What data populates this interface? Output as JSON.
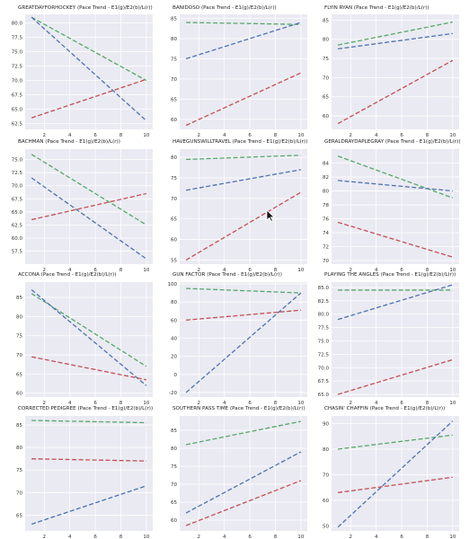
{
  "colors": {
    "background": "#eaeaf2",
    "grid": "#ffffff",
    "axis_text": "#333333",
    "title_text": "#222222",
    "series_a": "#55a868",
    "series_b": "#4c72b0",
    "series_c": "#c44e52"
  },
  "cursor_icon": "arrow-cursor-icon",
  "chart_data": [
    {
      "type": "line",
      "title": "GREATDAYFORHOCKEY (Pace Trend - E1(g)/E2(b)/L(r))",
      "x": [
        1,
        10
      ],
      "xticks": [
        2,
        4,
        6,
        8,
        10
      ],
      "xlim": [
        0.5,
        10.5
      ],
      "ylim": [
        61.5,
        81.5
      ],
      "yticks": [
        62.5,
        65.0,
        67.5,
        70.0,
        72.5,
        75.0,
        77.5,
        80.0
      ],
      "ytick_labels": [
        "62.5",
        "65.0",
        "67.5",
        "70.0",
        "72.5",
        "75.0",
        "77.5",
        "80.0"
      ],
      "series": [
        {
          "color": "series_a",
          "values": [
            81.0,
            70.0
          ]
        },
        {
          "color": "series_b",
          "values": [
            81.0,
            63.0
          ]
        },
        {
          "color": "series_c",
          "values": [
            63.5,
            70.2
          ]
        }
      ]
    },
    {
      "type": "line",
      "title": "BANIDOSO (Pace Trend - E1(g)/E2(b)/L(r))",
      "x": [
        1,
        10
      ],
      "xticks": [
        2,
        4,
        6,
        8,
        10
      ],
      "xlim": [
        0.5,
        10.5
      ],
      "ylim": [
        57.5,
        86
      ],
      "yticks": [
        60,
        65,
        70,
        75,
        80,
        85
      ],
      "ytick_labels": [
        "60",
        "65",
        "70",
        "75",
        "80",
        "85"
      ],
      "series": [
        {
          "color": "series_a",
          "values": [
            84.0,
            83.5
          ]
        },
        {
          "color": "series_b",
          "values": [
            75.0,
            84.0
          ]
        },
        {
          "color": "series_c",
          "values": [
            58.5,
            71.5
          ]
        }
      ]
    },
    {
      "type": "line",
      "title": "FLYIN RYAN (Pace Trend - E1(g)/E2(b)/L(r))",
      "x": [
        1,
        10
      ],
      "xticks": [
        2,
        4,
        6,
        8,
        10
      ],
      "xlim": [
        0.5,
        10.5
      ],
      "ylim": [
        56.5,
        86.5
      ],
      "yticks": [
        60,
        65,
        70,
        75,
        80,
        85
      ],
      "ytick_labels": [
        "60",
        "65",
        "70",
        "75",
        "80",
        "85"
      ],
      "series": [
        {
          "color": "series_a",
          "values": [
            78.5,
            84.5
          ]
        },
        {
          "color": "series_b",
          "values": [
            77.5,
            81.5
          ]
        },
        {
          "color": "series_c",
          "values": [
            58.0,
            74.5
          ]
        }
      ]
    },
    {
      "type": "line",
      "title": "BACHMAN (Pace Trend - E1(g)/E2(b)/L(r))",
      "x": [
        1,
        10
      ],
      "xticks": [
        2,
        4,
        6,
        8,
        10
      ],
      "xlim": [
        0.5,
        10.5
      ],
      "ylim": [
        55,
        77
      ],
      "yticks": [
        57.5,
        60.0,
        62.5,
        65.0,
        67.5,
        70.0,
        72.5,
        75.0
      ],
      "ytick_labels": [
        "57.5",
        "60.0",
        "62.5",
        "65.0",
        "67.5",
        "70.0",
        "72.5",
        "75.0"
      ],
      "series": [
        {
          "color": "series_a",
          "values": [
            76.0,
            62.5
          ]
        },
        {
          "color": "series_b",
          "values": [
            71.5,
            56.0
          ]
        },
        {
          "color": "series_c",
          "values": [
            63.5,
            68.5
          ]
        }
      ]
    },
    {
      "type": "line",
      "title": "HAVEGUNSWILLTRAVEL (Pace Trend - E1(g)/E2(b)/L(r))",
      "x": [
        1,
        10
      ],
      "xticks": [
        2,
        4,
        6,
        8,
        10
      ],
      "xlim": [
        0.5,
        10.5
      ],
      "ylim": [
        54,
        82
      ],
      "yticks": [
        55,
        60,
        65,
        70,
        75,
        80
      ],
      "ytick_labels": [
        "55",
        "60",
        "65",
        "70",
        "75",
        "80"
      ],
      "series": [
        {
          "color": "series_a",
          "values": [
            79.5,
            80.5
          ]
        },
        {
          "color": "series_b",
          "values": [
            72.0,
            77.0
          ]
        },
        {
          "color": "series_c",
          "values": [
            55.0,
            71.5
          ]
        }
      ]
    },
    {
      "type": "line",
      "title": "GERALDRAYDAPLEGRAY (Pace Trend - E1(g)/E2(b)/L(r))",
      "x": [
        1,
        10
      ],
      "xticks": [
        2,
        4,
        6,
        8,
        10
      ],
      "xlim": [
        0.5,
        10.5
      ],
      "ylim": [
        69.5,
        86
      ],
      "yticks": [
        70,
        72,
        74,
        76,
        78,
        80,
        82,
        84
      ],
      "ytick_labels": [
        "70",
        "72",
        "74",
        "76",
        "78",
        "80",
        "82",
        "84"
      ],
      "series": [
        {
          "color": "series_a",
          "values": [
            85.0,
            79.0
          ]
        },
        {
          "color": "series_b",
          "values": [
            81.5,
            80.0
          ]
        },
        {
          "color": "series_c",
          "values": [
            75.5,
            70.5
          ]
        }
      ]
    },
    {
      "type": "line",
      "title": "ACCONA (Pace Trend - E1(g)/E2(b)/L(r))",
      "x": [
        1,
        10
      ],
      "xticks": [
        2,
        4,
        6,
        8,
        10
      ],
      "xlim": [
        0.5,
        10.5
      ],
      "ylim": [
        59,
        89
      ],
      "yticks": [
        60,
        65,
        70,
        75,
        80,
        85
      ],
      "ytick_labels": [
        "60",
        "65",
        "70",
        "75",
        "80",
        "85"
      ],
      "series": [
        {
          "color": "series_a",
          "values": [
            86.0,
            67.0
          ]
        },
        {
          "color": "series_b",
          "values": [
            87.0,
            62.0
          ]
        },
        {
          "color": "series_c",
          "values": [
            69.5,
            63.5
          ]
        }
      ]
    },
    {
      "type": "line",
      "title": "GUN FACTOR (Pace Trend - E1(g)/E2(b)/L(r))",
      "x": [
        1,
        10
      ],
      "xticks": [
        2,
        4,
        6,
        8,
        10
      ],
      "xlim": [
        0.5,
        10.5
      ],
      "ylim": [
        -25,
        102
      ],
      "yticks": [
        -20,
        0,
        20,
        40,
        60,
        80,
        100
      ],
      "ytick_labels": [
        "-20",
        "0",
        "20",
        "40",
        "60",
        "80",
        "100"
      ],
      "series": [
        {
          "color": "series_a",
          "values": [
            95.0,
            90.0
          ]
        },
        {
          "color": "series_b",
          "values": [
            -20.0,
            90.0
          ]
        },
        {
          "color": "series_c",
          "values": [
            60.0,
            71.0
          ]
        }
      ]
    },
    {
      "type": "line",
      "title": "PLAYING THE ANGLES (Pace Trend - E1(g)/E2(b)/L(r))",
      "x": [
        1,
        10
      ],
      "xticks": [
        2,
        4,
        6,
        8,
        10
      ],
      "xlim": [
        0.5,
        10.5
      ],
      "ylim": [
        64.5,
        86
      ],
      "yticks": [
        65.0,
        67.5,
        70.0,
        72.5,
        75.0,
        77.5,
        80.0,
        82.5,
        85.0
      ],
      "ytick_labels": [
        "65.0",
        "67.5",
        "70.0",
        "72.5",
        "75.0",
        "77.5",
        "80.0",
        "82.5",
        "85.0"
      ],
      "series": [
        {
          "color": "series_a",
          "values": [
            84.5,
            84.5
          ]
        },
        {
          "color": "series_b",
          "values": [
            79.0,
            85.5
          ]
        },
        {
          "color": "series_c",
          "values": [
            65.0,
            71.5
          ]
        }
      ]
    },
    {
      "type": "line",
      "title": "CORRECTED PEDIGREE (Pace Trend - E1(g)/E2(b)/L(r))",
      "x": [
        1,
        10
      ],
      "xticks": [
        2,
        4,
        6,
        8,
        10
      ],
      "xlim": [
        0.5,
        10.5
      ],
      "ylim": [
        61.5,
        87
      ],
      "yticks": [
        65,
        70,
        75,
        80,
        85
      ],
      "ytick_labels": [
        "65",
        "70",
        "75",
        "80",
        "85"
      ],
      "series": [
        {
          "color": "series_a",
          "values": [
            86.0,
            85.5
          ]
        },
        {
          "color": "series_b",
          "values": [
            63.0,
            71.5
          ]
        },
        {
          "color": "series_c",
          "values": [
            77.5,
            77.0
          ]
        }
      ]
    },
    {
      "type": "line",
      "title": "SOUTHERN PASS TIME (Pace Trend - E1(g)/E2(b)/L(r))",
      "x": [
        1,
        10
      ],
      "xticks": [
        2,
        4,
        6,
        8,
        10
      ],
      "xlim": [
        0.5,
        10.5
      ],
      "ylim": [
        57,
        89
      ],
      "yticks": [
        60,
        65,
        70,
        75,
        80,
        85
      ],
      "ytick_labels": [
        "60",
        "65",
        "70",
        "75",
        "80",
        "85"
      ],
      "series": [
        {
          "color": "series_a",
          "values": [
            81.0,
            87.5
          ]
        },
        {
          "color": "series_b",
          "values": [
            62.0,
            79.0
          ]
        },
        {
          "color": "series_c",
          "values": [
            58.5,
            71.0
          ]
        }
      ]
    },
    {
      "type": "line",
      "title": "CHASIN' CHAFFIN (Pace Trend - E1(g)/E2(b)/L(r))",
      "x": [
        1,
        10
      ],
      "xticks": [
        2,
        4,
        6,
        8,
        10
      ],
      "xlim": [
        0.5,
        10.5
      ],
      "ylim": [
        48,
        93
      ],
      "yticks": [
        50,
        60,
        70,
        80,
        90
      ],
      "ytick_labels": [
        "50",
        "60",
        "70",
        "80",
        "90"
      ],
      "series": [
        {
          "color": "series_a",
          "values": [
            80.0,
            85.5
          ]
        },
        {
          "color": "series_b",
          "values": [
            49.5,
            91.0
          ]
        },
        {
          "color": "series_c",
          "values": [
            63.0,
            69.0
          ]
        }
      ]
    }
  ]
}
